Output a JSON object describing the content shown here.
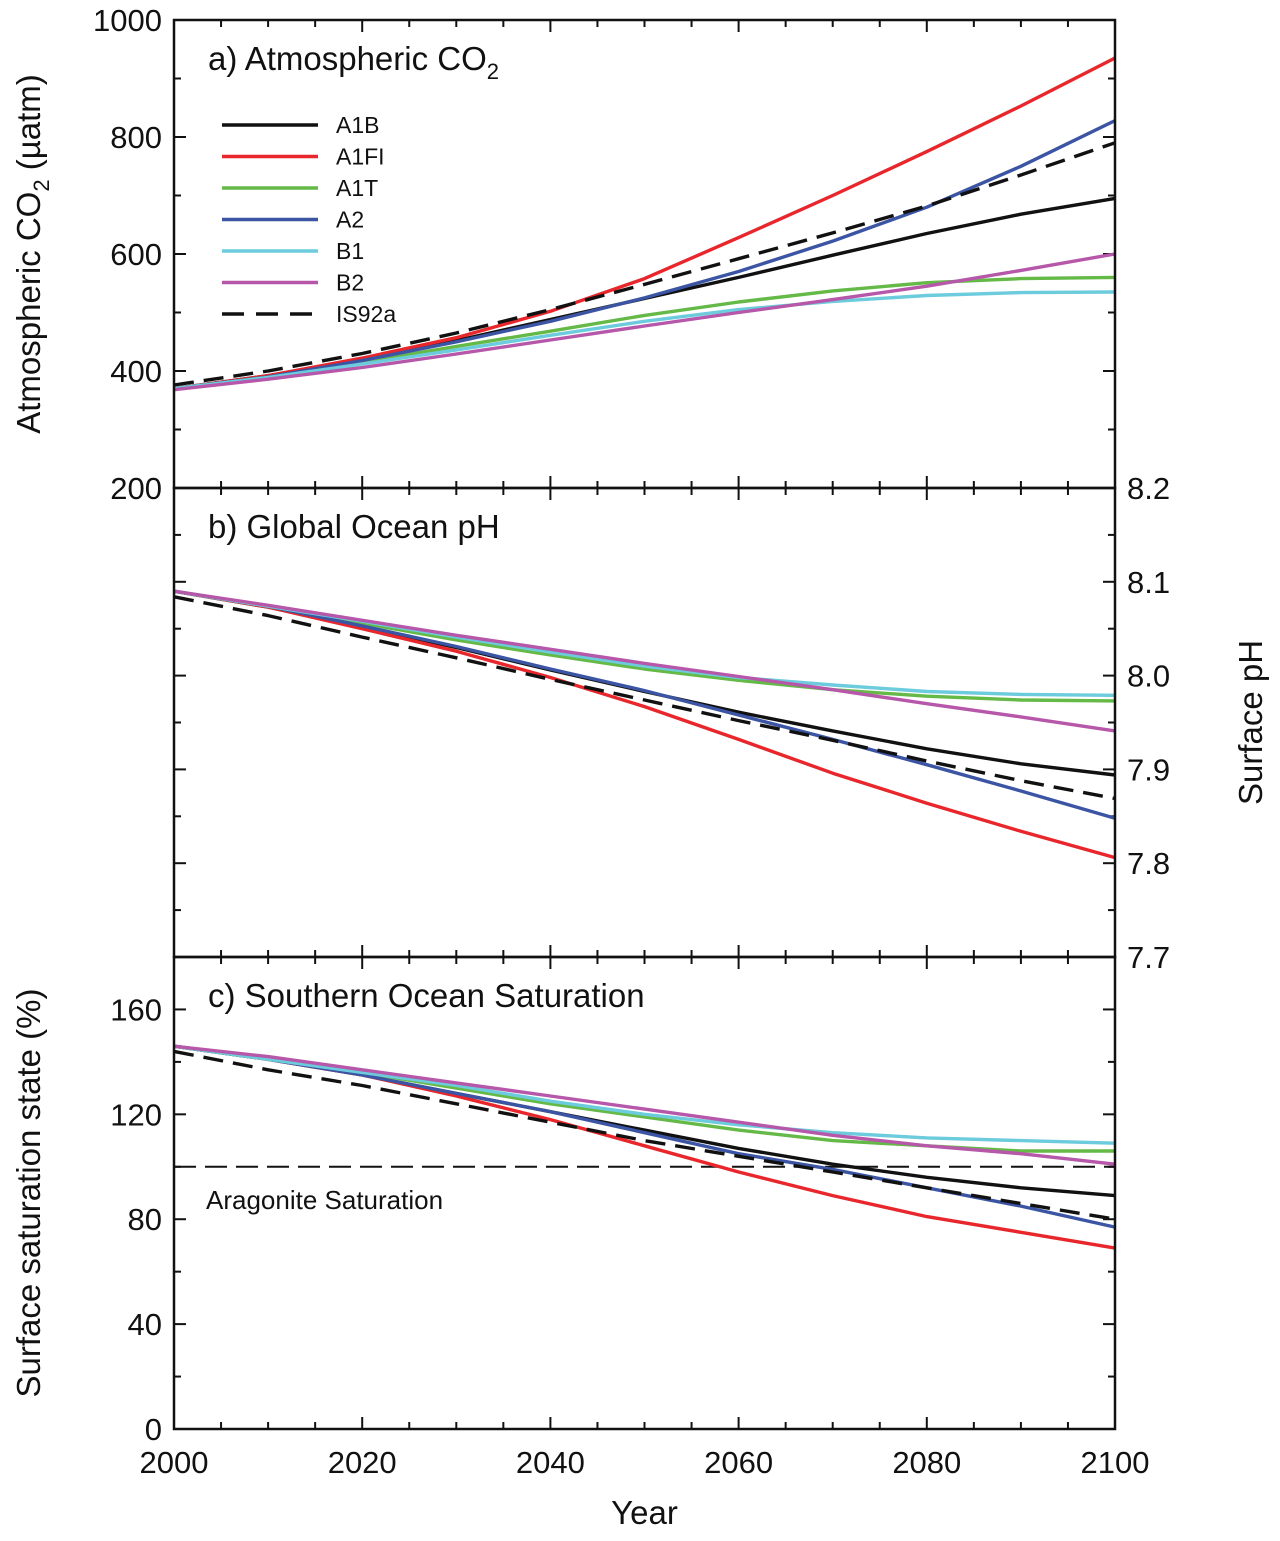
{
  "chart_data": {
    "type": "line",
    "xlabel": "Year",
    "xlim": [
      2000,
      2100
    ],
    "xticks": [
      2000,
      2020,
      2040,
      2060,
      2080,
      2100
    ],
    "colors": {
      "A1B": "#111111",
      "A1FI": "#e8262b",
      "A1T": "#64b947",
      "A2": "#3b55a4",
      "B1": "#6ccbdc",
      "B2": "#b657aa",
      "IS92a": "#111111"
    },
    "legend": [
      "A1B",
      "A1FI",
      "A1T",
      "A2",
      "B1",
      "B2",
      "IS92a"
    ],
    "dashed_series": [
      "IS92a"
    ],
    "panels": [
      {
        "id": "a",
        "title": "a) Atmospheric CO",
        "title_sub": "2",
        "ylabel_main": "Atmospheric CO",
        "ylabel_sub": "2",
        "ylabel_tail": " (µatm)",
        "ylim": [
          200,
          1000
        ],
        "yticks": [
          200,
          400,
          600,
          800,
          1000
        ],
        "x": [
          2000,
          2010,
          2020,
          2030,
          2040,
          2050,
          2060,
          2070,
          2080,
          2090,
          2100
        ],
        "series": [
          {
            "name": "A1B",
            "values": [
              370,
              392,
              420,
              452,
              488,
              524,
              560,
              598,
              635,
              668,
              695
            ]
          },
          {
            "name": "A1FI",
            "values": [
              370,
              392,
              422,
              457,
              502,
              558,
              628,
              700,
              775,
              853,
              935
            ]
          },
          {
            "name": "A1T",
            "values": [
              370,
              390,
              415,
              442,
              468,
              495,
              518,
              537,
              551,
              558,
              560
            ]
          },
          {
            "name": "A2",
            "values": [
              370,
              390,
              418,
              450,
              485,
              525,
              570,
              622,
              680,
              750,
              828
            ]
          },
          {
            "name": "B1",
            "values": [
              370,
              389,
              412,
              436,
              461,
              485,
              505,
              519,
              529,
              534,
              535
            ]
          },
          {
            "name": "B2",
            "values": [
              368,
              386,
              406,
              429,
              453,
              477,
              500,
              522,
              545,
              572,
              600
            ]
          },
          {
            "name": "IS92a",
            "values": [
              376,
              400,
              430,
              465,
              505,
              548,
              592,
              636,
              682,
              735,
              790
            ]
          }
        ]
      },
      {
        "id": "b",
        "title": "b) Global Ocean pH",
        "ylabel_right": "Surface pH",
        "ylim": [
          7.7,
          8.2
        ],
        "yticks": [
          7.7,
          7.8,
          7.9,
          8.0,
          8.1,
          8.2
        ],
        "ytick_labels": [
          "7.7",
          "7.8",
          "7.9",
          "8.0",
          "8.1",
          "8.2"
        ],
        "x": [
          2000,
          2010,
          2020,
          2030,
          2040,
          2050,
          2060,
          2070,
          2080,
          2090,
          2100
        ],
        "series": [
          {
            "name": "A1B",
            "values": [
              8.09,
              8.073,
              8.052,
              8.03,
              8.006,
              7.983,
              7.961,
              7.941,
              7.922,
              7.906,
              7.894
            ]
          },
          {
            "name": "A1FI",
            "values": [
              8.09,
              8.073,
              8.05,
              8.026,
              7.998,
              7.967,
              7.932,
              7.896,
              7.864,
              7.834,
              7.806
            ]
          },
          {
            "name": "A1T",
            "values": [
              8.09,
              8.074,
              8.056,
              8.038,
              8.022,
              8.007,
              7.995,
              7.985,
              7.978,
              7.974,
              7.973
            ]
          },
          {
            "name": "A2",
            "values": [
              8.09,
              8.074,
              8.053,
              8.031,
              8.007,
              7.984,
              7.958,
              7.932,
              7.905,
              7.877,
              7.848
            ]
          },
          {
            "name": "B1",
            "values": [
              8.09,
              8.074,
              8.058,
              8.041,
              8.025,
              8.01,
              7.998,
              7.99,
              7.983,
              7.98,
              7.979
            ]
          },
          {
            "name": "B2",
            "values": [
              8.09,
              8.075,
              8.059,
              8.043,
              8.028,
              8.013,
              7.999,
              7.985,
              7.97,
              7.956,
              7.941
            ]
          },
          {
            "name": "IS92a",
            "values": [
              8.084,
              8.064,
              8.041,
              8.019,
              7.996,
              7.974,
              7.952,
              7.931,
              7.909,
              7.888,
              7.869
            ]
          }
        ]
      },
      {
        "id": "c",
        "title": "c) Southern Ocean Saturation",
        "ylabel": "Surface saturation state (%)",
        "ylim": [
          0,
          180
        ],
        "yticks": [
          0,
          40,
          80,
          120,
          160
        ],
        "annotation": "Aragonite Saturation",
        "threshold": 100,
        "x": [
          2000,
          2010,
          2020,
          2030,
          2040,
          2050,
          2060,
          2070,
          2080,
          2090,
          2100
        ],
        "series": [
          {
            "name": "A1B",
            "values": [
              146,
              141,
              135,
              128,
              121,
              114,
              107,
              101,
              96,
              92,
              89
            ]
          },
          {
            "name": "A1FI",
            "values": [
              146,
              141,
              135,
              127,
              118,
              108,
              98,
              89,
              81,
              75,
              69
            ]
          },
          {
            "name": "A1T",
            "values": [
              146,
              141,
              136,
              130,
              124,
              119,
              114,
              110,
              108,
              106,
              106
            ]
          },
          {
            "name": "A2",
            "values": [
              146,
              141,
              135,
              128,
              121,
              113,
              105,
              99,
              92,
              85,
              77
            ]
          },
          {
            "name": "B1",
            "values": [
              146,
              141,
              136,
              131,
              125,
              120,
              116,
              113,
              111,
              110,
              109
            ]
          },
          {
            "name": "B2",
            "values": [
              146,
              142,
              137,
              132,
              127,
              122,
              117,
              112,
              108,
              105,
              101
            ]
          },
          {
            "name": "IS92a",
            "values": [
              144,
              137,
              131,
              124,
              117,
              110,
              104,
              98,
              92,
              86,
              80
            ]
          }
        ]
      }
    ]
  }
}
